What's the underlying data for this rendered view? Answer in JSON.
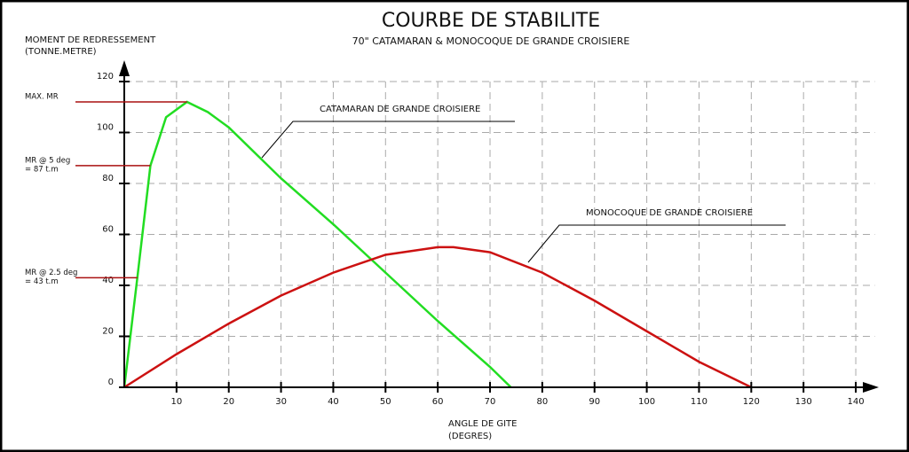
{
  "chart_data": {
    "type": "line",
    "title": "COURBE DE STABILITE",
    "subtitle": "70\" CATAMARAN & MONOCOQUE DE GRANDE CROISIERE",
    "y_label": [
      "MOMENT DE REDRESSEMENT",
      "(TONNE.METRE)"
    ],
    "x_label": [
      "ANGLE DE GITE",
      "(DEGRES)"
    ],
    "xlim": [
      0,
      145
    ],
    "ylim": [
      0,
      125
    ],
    "xticks": [
      10,
      20,
      30,
      40,
      50,
      60,
      70,
      80,
      90,
      100,
      110,
      120,
      130,
      140
    ],
    "yticks": [
      0,
      20,
      40,
      60,
      80,
      100,
      120
    ],
    "grid": true,
    "series": [
      {
        "name": "CATAMARAN DE GRANDE CROISIERE",
        "color": "#22dd22",
        "x": [
          0,
          2.5,
          5,
          8,
          12,
          16,
          20,
          30,
          40,
          50,
          60,
          70,
          74
        ],
        "values": [
          0,
          43,
          87,
          106,
          112,
          108,
          102,
          82,
          64,
          45,
          26,
          8,
          0
        ]
      },
      {
        "name": "MONOCOQUE DE GRANDE CROISIERE",
        "color": "#cc1111",
        "x": [
          0,
          10,
          20,
          30,
          40,
          50,
          60,
          63,
          70,
          80,
          90,
          100,
          110,
          120
        ],
        "values": [
          0,
          13,
          25,
          36,
          45,
          52,
          55,
          55,
          53,
          45,
          34,
          22,
          10,
          0
        ]
      }
    ],
    "annotations": [
      {
        "text": [
          "MAX. MR"
        ],
        "point": 4
      },
      {
        "text": [
          "MR @ 5 deg",
          "= 87 t.m"
        ],
        "point": 2
      },
      {
        "text": [
          "MR @ 2.5 deg",
          "= 43 t.m"
        ],
        "point": 1
      }
    ]
  }
}
